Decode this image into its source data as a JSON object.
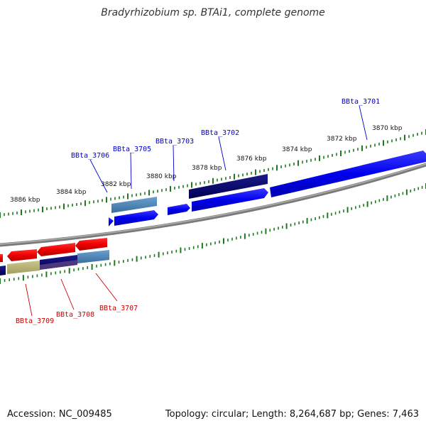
{
  "title": "Bradyrhizobium sp. BTAi1, complete genome",
  "footer": {
    "accession": "Accession: NC_009485",
    "summary": "Topology: circular; Length: 8,264,687 bp; Genes: 7,463"
  },
  "colors": {
    "backbone": "#7a7a7a",
    "ticks": "#1f7a1f",
    "forward_label": "#0000cc",
    "reverse_label": "#cc0000",
    "gene_blue": "#0000ee",
    "gene_navy": "#000066",
    "gene_steel": "#4682b4",
    "gene_red": "#ee0000",
    "gene_khaki": "#b5b070"
  },
  "scale": {
    "unit": "kbp",
    "labels": [
      "3886 kbp",
      "3884 kbp",
      "3882 kbp",
      "3880 kbp",
      "3878 kbp",
      "3876 kbp",
      "3874 kbp",
      "3872 kbp",
      "3870 kbp"
    ]
  },
  "genes": {
    "forward": [
      {
        "label": "BBta_3706"
      },
      {
        "label": "BBta_3705"
      },
      {
        "label": "BBta_3703"
      },
      {
        "label": "BBta_3702"
      },
      {
        "label": "BBta_3701"
      }
    ],
    "reverse": [
      {
        "label": "BBta_3709"
      },
      {
        "label": "BBta_3708"
      },
      {
        "label": "BBta_3707"
      }
    ]
  }
}
